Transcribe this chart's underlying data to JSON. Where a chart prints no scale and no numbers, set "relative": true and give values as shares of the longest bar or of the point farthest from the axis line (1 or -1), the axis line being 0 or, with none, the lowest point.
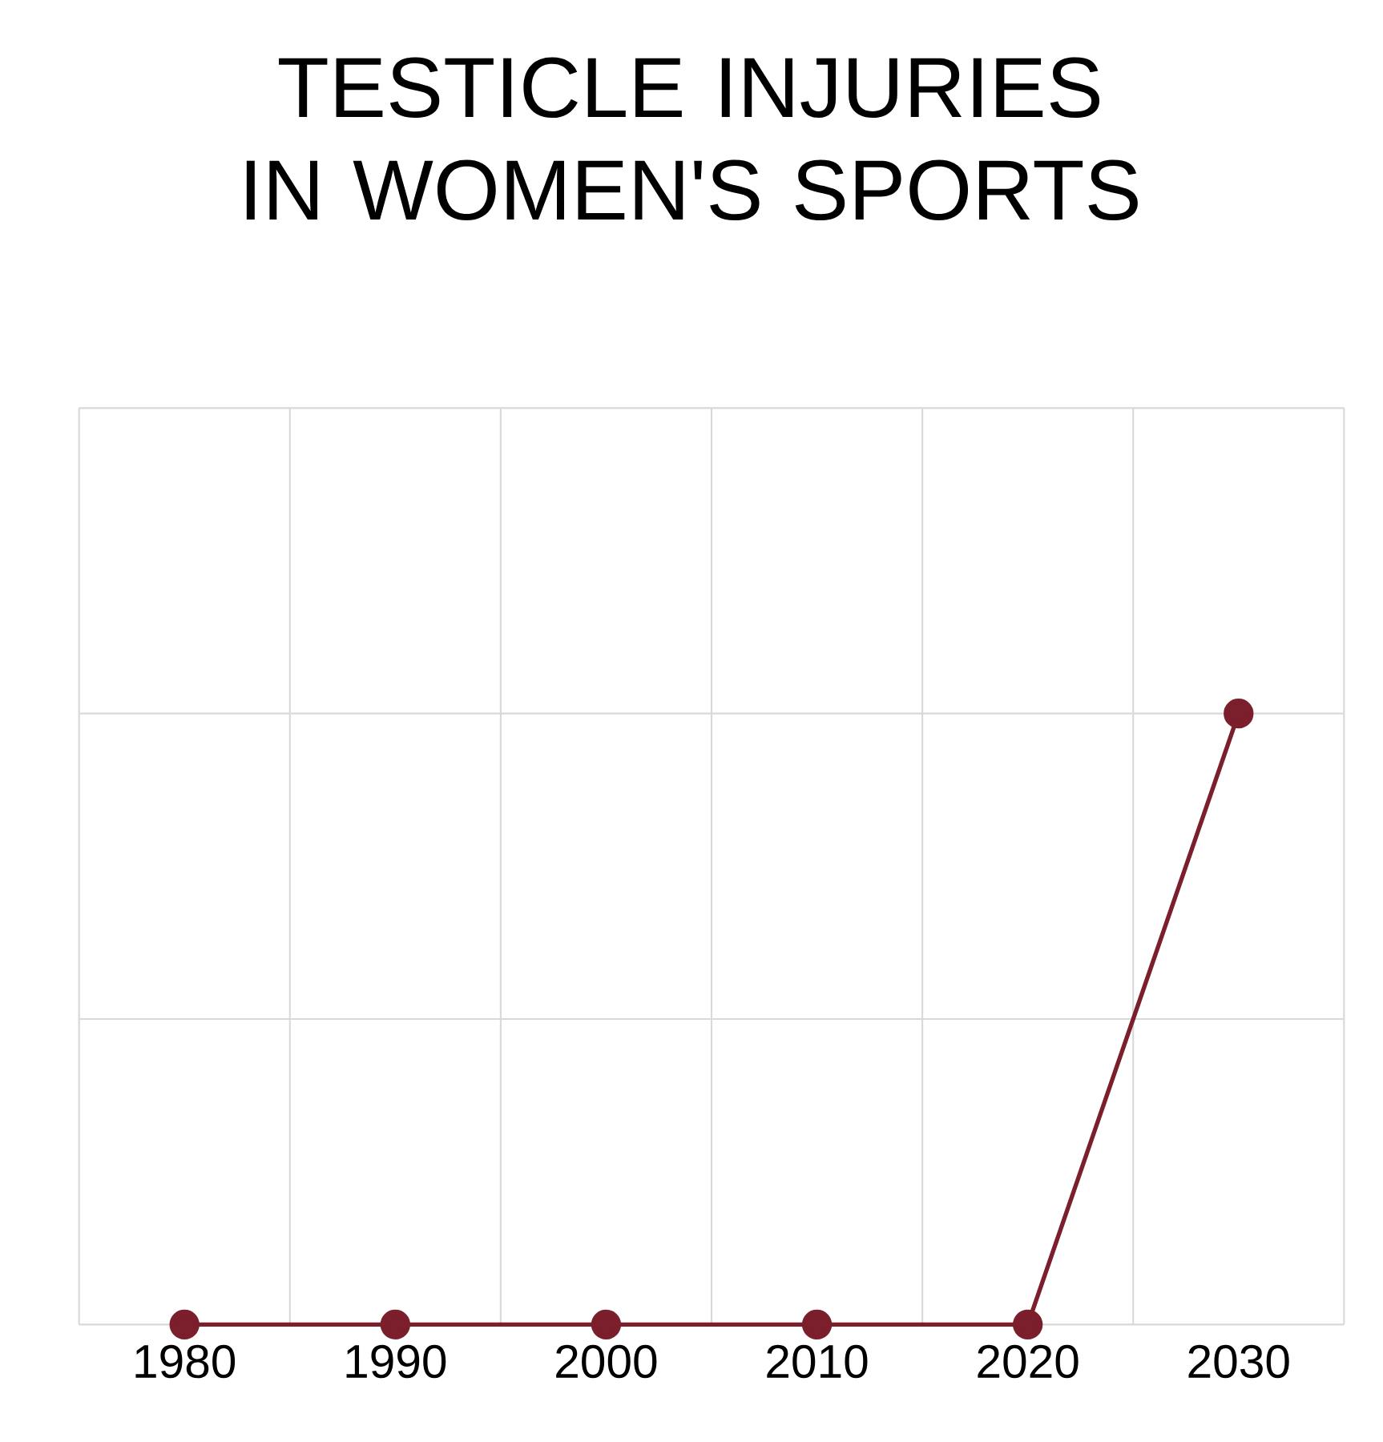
{
  "chart_data": {
    "type": "line",
    "title": "TESTICLE INJURIES IN WOMEN'S SPORTS",
    "categories": [
      "1980",
      "1990",
      "2000",
      "2010",
      "2020",
      "2030"
    ],
    "series": [
      {
        "color": "#7a1f2b",
        "values": [
          0,
          0,
          0,
          0,
          0,
          1
        ]
      }
    ],
    "relative": true,
    "grid": true,
    "marker": "circle",
    "line_style": "solid"
  }
}
